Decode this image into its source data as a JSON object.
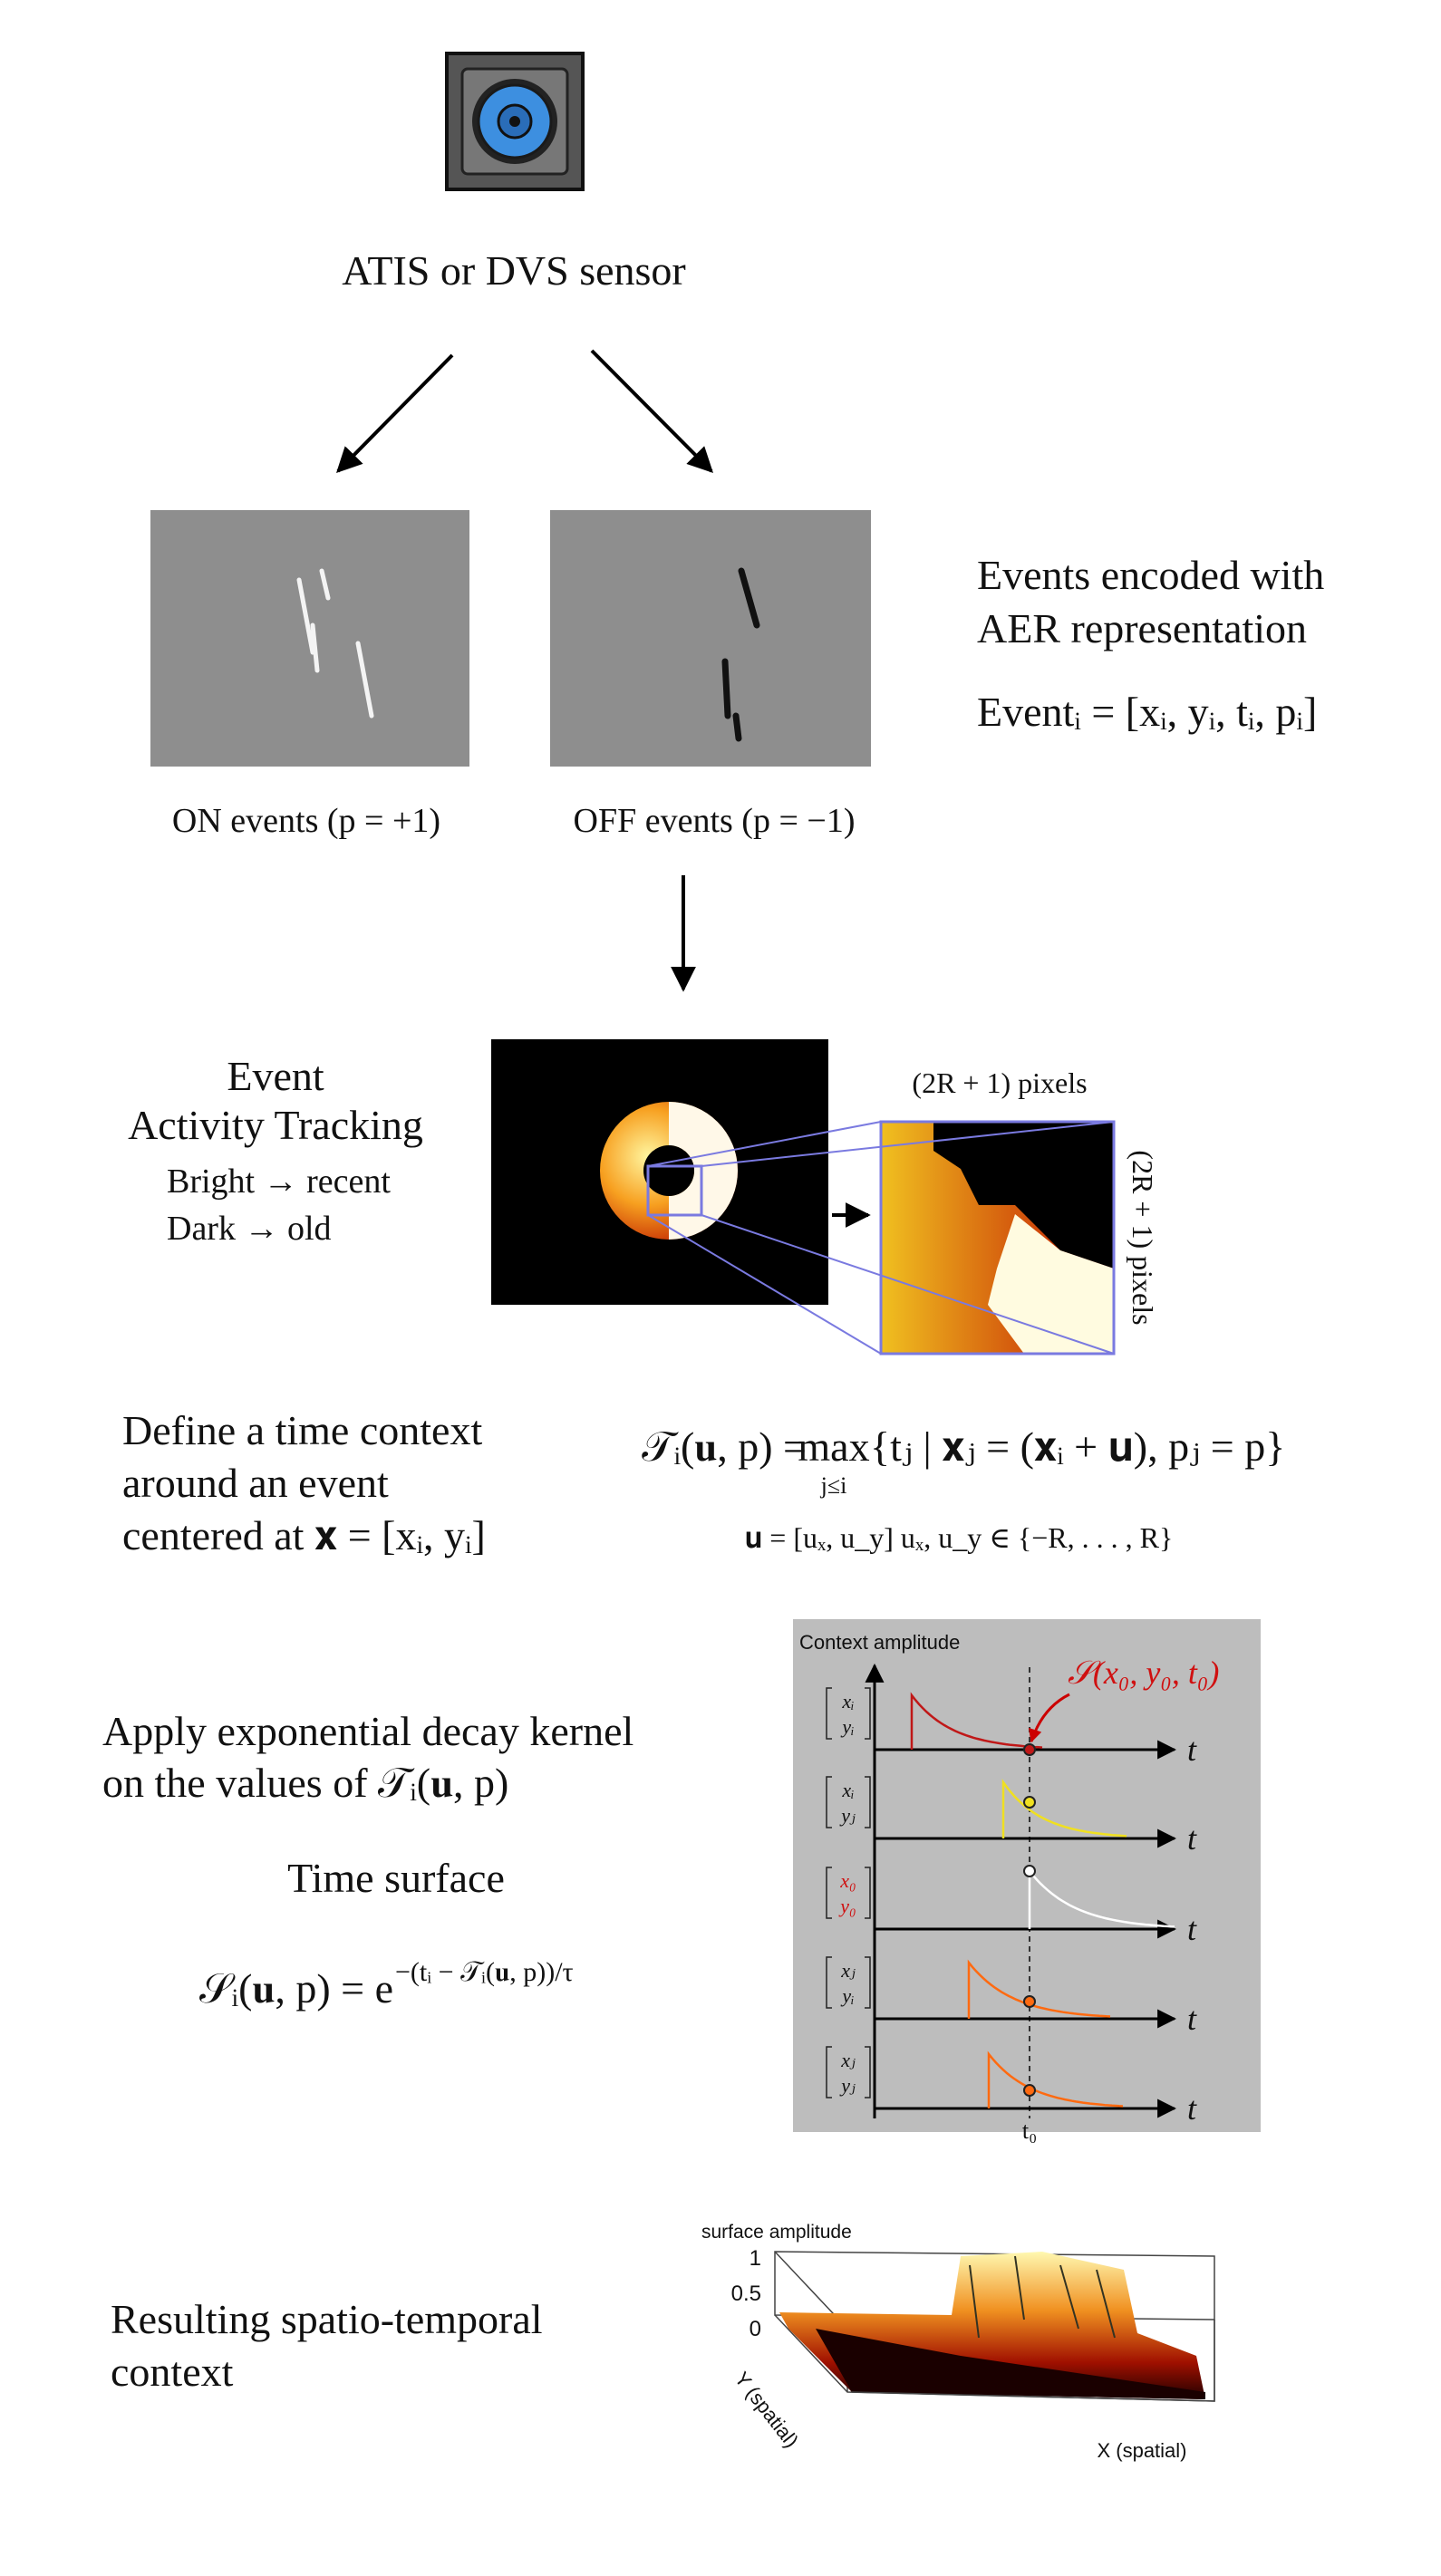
{
  "sensor": {
    "label": "ATIS or DVS sensor"
  },
  "events": {
    "on_label": "ON events (p = +1)",
    "off_label": "OFF events (p = −1)",
    "description": [
      "Events encoded with",
      "AER representation"
    ],
    "formula": "Eventᵢ = [xᵢ, yᵢ, tᵢ, pᵢ]"
  },
  "tracking": {
    "title": [
      "Event",
      "Activity Tracking"
    ],
    "notes": [
      "Bright → recent",
      "Dark → old"
    ],
    "zoom_width_label": "(2R + 1) pixels",
    "zoom_height_label": "(2R + 1) pixels"
  },
  "context": {
    "description": [
      "Define a time context",
      "around an event",
      "centered at 𝐱 = [xᵢ, yᵢ]"
    ],
    "formula_lhs": "𝒯ᵢ(𝐮, p) =",
    "formula_op": "max",
    "formula_op_sub": "j≤i",
    "formula_rhs": "{tⱼ | 𝐱ⱼ = (𝐱ᵢ + 𝐮), pⱼ = p}",
    "formula_domain": "𝐮 = [uₓ, u_y]    uₓ, u_y ∈ {−R, . . . , R}"
  },
  "decay": {
    "description": [
      "Apply exponential decay kernel",
      "on the values of 𝒯ᵢ(𝐮, p)"
    ],
    "title": "Time surface",
    "formula_base": "𝒮ᵢ(𝐮, p) = e",
    "formula_exponent": "−(tᵢ − 𝒯ᵢ(𝐮, p))/τ"
  },
  "decay_plot": {
    "y_label": "Context amplitude",
    "annotation": "𝒮(x₀, y₀, t₀)",
    "rows": [
      {
        "top": "xᵢ",
        "bottom": "yᵢ",
        "axis": "t"
      },
      {
        "top": "xᵢ",
        "bottom": "yⱼ",
        "axis": "t"
      },
      {
        "top": "x₀",
        "bottom": "y₀",
        "axis": "t"
      },
      {
        "top": "xⱼ",
        "bottom": "yᵢ",
        "axis": "t"
      },
      {
        "top": "xⱼ",
        "bottom": "yⱼ",
        "axis": "t"
      }
    ],
    "x_marker": "t₀"
  },
  "result": {
    "description": [
      "Resulting spatio-temporal",
      "context"
    ]
  },
  "surface_plot": {
    "z_label": "surface amplitude",
    "z_ticks": [
      "1",
      "0.5",
      "0"
    ],
    "y_label": "Y (spatial)",
    "x_label": "X (spatial)"
  }
}
